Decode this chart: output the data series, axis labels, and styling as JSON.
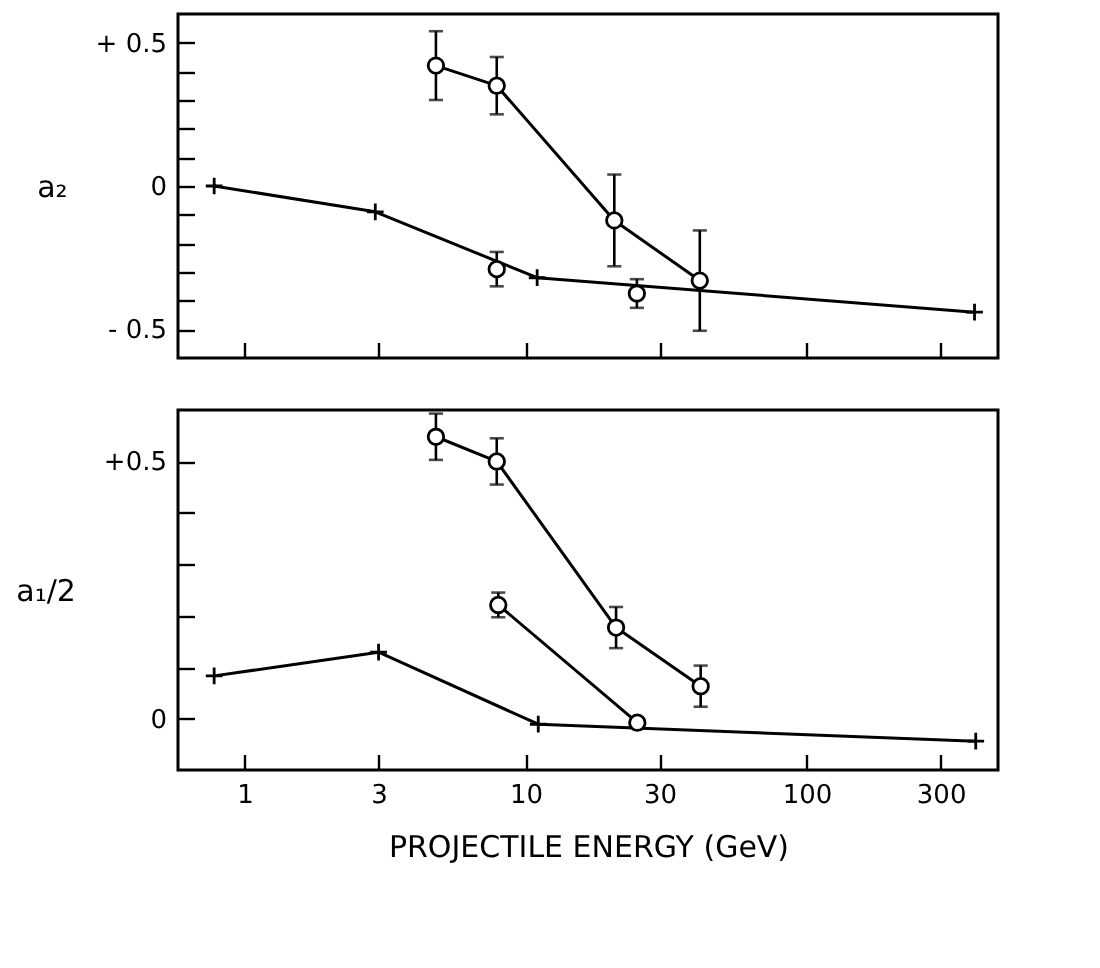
{
  "chart_data": [
    {
      "type": "line",
      "ylabel": "a₂",
      "log": "x",
      "xlim": [
        0.58,
        480
      ],
      "xticks": [
        1,
        3,
        10,
        30,
        100,
        300
      ],
      "ylim": [
        -0.6,
        0.6
      ],
      "yticks": [
        {
          "value": 0.5,
          "label": "+ 0.5"
        },
        {
          "value": 0.4,
          "label": null
        },
        {
          "value": 0.3,
          "label": null
        },
        {
          "value": 0.2,
          "label": null
        },
        {
          "value": 0.1,
          "label": null
        },
        0,
        {
          "value": -0.1,
          "label": null
        },
        {
          "value": -0.2,
          "label": null
        },
        {
          "value": -0.3,
          "label": null
        },
        {
          "value": -0.4,
          "label": null
        },
        {
          "value": -0.5,
          "label": "- 0.5"
        }
      ],
      "tick_labels": "y",
      "grid": false,
      "series": [
        {
          "type": "line",
          "color": "#000000",
          "marker": "circle",
          "x": [
            4.8,
            7.9,
            20.7,
            41.7
          ],
          "values": [
            0.42,
            0.35,
            -0.12,
            -0.33
          ],
          "errors": [
            0.12,
            0.1,
            0.16,
            0.175
          ]
        },
        {
          "type": "line",
          "color": "#000000",
          "marker": "cross",
          "x": [
            0.78,
            2.92,
            11,
            396
          ],
          "values": [
            0,
            -0.09,
            -0.32,
            -0.44
          ]
        },
        {
          "type": "scatter",
          "color": "#000000",
          "marker": "circle",
          "x": [
            7.9,
            24.9
          ],
          "values": [
            -0.29,
            -0.375
          ],
          "errors": [
            0.06,
            0.05
          ]
        }
      ]
    },
    {
      "type": "line",
      "ylabel": "a₁/2",
      "xlabel": "PROJECTILE ENERGY (GeV)",
      "log": "x",
      "xlim": [
        0.58,
        480
      ],
      "xticks": [
        1,
        3,
        10,
        30,
        100,
        300
      ],
      "ylim": [
        -0.1,
        0.6
      ],
      "yticks": [
        {
          "value": 0.5,
          "label": "+0.5"
        },
        {
          "value": 0.4,
          "label": null
        },
        {
          "value": 0.3,
          "label": null
        },
        {
          "value": 0.2,
          "label": null
        },
        {
          "value": 0.1,
          "label": null
        },
        0
      ],
      "grid": false,
      "series": [
        {
          "type": "line",
          "color": "#000000",
          "marker": "circle",
          "x": [
            4.8,
            7.9,
            21,
            42
          ],
          "values": [
            0.548,
            0.5,
            0.177,
            0.063
          ],
          "errors": [
            0.045,
            0.045,
            0.04,
            0.04
          ]
        },
        {
          "type": "line",
          "color": "#000000",
          "marker": "cross",
          "x": [
            0.78,
            3,
            11.1,
            400
          ],
          "values": [
            0.083,
            0.129,
            -0.011,
            -0.044
          ]
        },
        {
          "type": "line",
          "color": "#000000",
          "marker": "circle",
          "x": [
            8,
            25
          ],
          "values": [
            0.221,
            -0.008
          ],
          "errors": [
            0.024,
            null
          ]
        }
      ]
    }
  ]
}
